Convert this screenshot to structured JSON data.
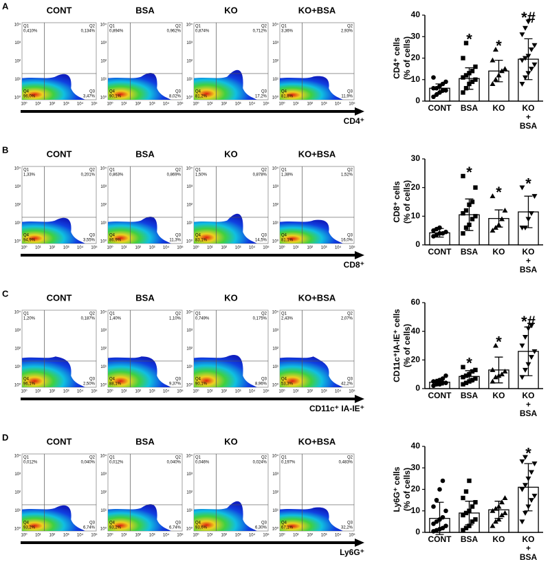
{
  "quadrant_names": [
    "Q1",
    "Q2",
    "Q3",
    "Q4"
  ],
  "x_log_ticks": [
    "10⁰",
    "10¹",
    "10²",
    "10³",
    "10⁴",
    "10⁵"
  ],
  "y_log_ticks": [
    "10⁰",
    "10¹",
    "10²",
    "10³",
    "10⁴"
  ],
  "flow_panels": [
    {
      "letter": "A",
      "axis_label": "CD4⁺",
      "plots": [
        {
          "title": "CONT",
          "q1": "0,410%",
          "q2": "0,134%",
          "q3": "3,47%",
          "q4": "96,0%"
        },
        {
          "title": "BSA",
          "q1": "0,894%",
          "q2": "0,962%",
          "q3": "8,02%",
          "q4": "90,1%"
        },
        {
          "title": "KO",
          "q1": "0,874%",
          "q2": "0,712%",
          "q3": "17,2%",
          "q4": "81,2%"
        },
        {
          "title": "KO+BSA",
          "q1": "3,36%",
          "q2": "2,93%",
          "q3": "11,9%",
          "q4": "81,8%"
        }
      ]
    },
    {
      "letter": "B",
      "axis_label": "CD8⁺",
      "plots": [
        {
          "title": "CONT",
          "q1": "1,33%",
          "q2": "0,201%",
          "q3": "3,55%",
          "q4": "94,9%"
        },
        {
          "title": "BSA",
          "q1": "0,863%",
          "q2": "0,869%",
          "q3": "11,3%",
          "q4": "86,9%"
        },
        {
          "title": "KO",
          "q1": "1,50%",
          "q2": "0,878%",
          "q3": "14,5%",
          "q4": "83,1%"
        },
        {
          "title": "KO+BSA",
          "q1": "1,38%",
          "q2": "1,52%",
          "q3": "16,0%",
          "q4": "81,1%"
        }
      ]
    },
    {
      "letter": "C",
      "axis_label": "CD11c⁺ IA-IE⁺",
      "plots": [
        {
          "title": "CONT",
          "q1": "1,20%",
          "q2": "0,187%",
          "q3": "2,50%",
          "q4": "96,1%"
        },
        {
          "title": "BSA",
          "q1": "1,40%",
          "q2": "1,10%",
          "q3": "9,37%",
          "q4": "88,1%"
        },
        {
          "title": "KO",
          "q1": "0,749%",
          "q2": "0,175%",
          "q3": "8,96%",
          "q4": "90,1%"
        },
        {
          "title": "KO+BSA",
          "q1": "2,43%",
          "q2": "2,07%",
          "q3": "42,2%",
          "q4": "53,3%"
        }
      ]
    },
    {
      "letter": "D",
      "axis_label": "Ly6G⁺",
      "plots": [
        {
          "title": "CONT",
          "q1": "0,012%",
          "q2": "0,040%",
          "q3": "6,74%",
          "q4": "93,2%"
        },
        {
          "title": "BSA",
          "q1": "0,012%",
          "q2": "0,040%",
          "q3": "6,74%",
          "q4": "93,2%"
        },
        {
          "title": "KO",
          "q1": "0,046%",
          "q2": "0,024%",
          "q3": "6,30%",
          "q4": "93,6%"
        },
        {
          "title": "KO+BSA",
          "q1": "0,197%",
          "q2": "0,483%",
          "q3": "32,2%",
          "q4": "67,1%"
        }
      ]
    }
  ],
  "chart_data": [
    {
      "type": "bar",
      "ylabel": [
        "CD4⁺ cells",
        "(% of cells)"
      ],
      "ylim": [
        0,
        40
      ],
      "yticks": [
        0,
        10,
        20,
        30,
        40
      ],
      "groups": [
        {
          "label": [
            "CONT"
          ],
          "mean": 6,
          "sd": 2,
          "points": [
            2,
            3,
            4,
            5,
            5,
            6,
            6,
            7,
            8,
            9,
            11
          ]
        },
        {
          "label": [
            "BSA"
          ],
          "mean": 10.5,
          "sd": 5,
          "annotation": "*",
          "points": [
            4,
            6,
            8,
            9,
            10,
            11,
            12,
            13,
            14,
            16,
            20,
            27
          ]
        },
        {
          "label": [
            "KO"
          ],
          "mean": 14,
          "sd": 5,
          "annotation": "*",
          "points": [
            8,
            10,
            12,
            14,
            15,
            19,
            24
          ]
        },
        {
          "label": [
            "KO",
            "+",
            "BSA"
          ],
          "mean": 19.5,
          "sd": 9.5,
          "annotation": "*#",
          "points": [
            8,
            11,
            13,
            15,
            17,
            19,
            20,
            21,
            24,
            26,
            31,
            34,
            37
          ]
        }
      ]
    },
    {
      "type": "bar",
      "ylabel": [
        "CD8⁺ cells",
        "(% of cells)"
      ],
      "ylim": [
        0,
        30
      ],
      "yticks": [
        0,
        10,
        20,
        30
      ],
      "groups": [
        {
          "label": [
            "CONT"
          ],
          "mean": 4.2,
          "sd": 1.5,
          "points": [
            3,
            3.5,
            4,
            4,
            4.5,
            5,
            5.5,
            6
          ]
        },
        {
          "label": [
            "BSA"
          ],
          "mean": 10.5,
          "sd": 5.5,
          "annotation": "*",
          "points": [
            4,
            6,
            7,
            9,
            10,
            11,
            12,
            14,
            15,
            20,
            24
          ]
        },
        {
          "label": [
            "KO"
          ],
          "mean": 9.2,
          "sd": 3,
          "annotation": "*",
          "points": [
            5,
            6,
            7,
            9,
            12,
            17
          ]
        },
        {
          "label": [
            "KO",
            "+",
            "BSA"
          ],
          "mean": 11.5,
          "sd": 5.5,
          "annotation": "*",
          "points": [
            6,
            6,
            9,
            11,
            17,
            20
          ]
        }
      ]
    },
    {
      "type": "bar",
      "ylabel": [
        "CD11c⁺IA-IE⁺ cells",
        "(% of cells)"
      ],
      "ylim": [
        0,
        60
      ],
      "yticks": [
        0,
        20,
        40,
        60
      ],
      "groups": [
        {
          "label": [
            "CONT"
          ],
          "mean": 4.5,
          "sd": 2,
          "points": [
            2,
            3,
            3,
            4,
            4,
            5,
            5,
            6,
            7,
            9
          ]
        },
        {
          "label": [
            "BSA"
          ],
          "mean": 8.5,
          "sd": 4,
          "annotation": "*",
          "points": [
            3,
            4,
            5,
            6,
            7,
            8,
            9,
            10,
            12,
            13,
            15
          ]
        },
        {
          "label": [
            "KO"
          ],
          "mean": 13,
          "sd": 9,
          "annotation": "*",
          "points": [
            5,
            8,
            9,
            10,
            12,
            13,
            30
          ]
        },
        {
          "label": [
            "KO",
            "+",
            "BSA"
          ],
          "mean": 26,
          "sd": 17,
          "annotation": "*#",
          "points": [
            8,
            13,
            17,
            22,
            26,
            30,
            36,
            42,
            44
          ]
        }
      ]
    },
    {
      "type": "bar",
      "ylabel": [
        "Ly6G⁺ cells",
        "(% of cells)"
      ],
      "ylim": [
        0,
        40
      ],
      "yticks": [
        0,
        10,
        20,
        30,
        40
      ],
      "groups": [
        {
          "label": [
            "CONT"
          ],
          "mean": 6.5,
          "sd": 7.5,
          "points": [
            0.5,
            1,
            1.5,
            2,
            3,
            4,
            5,
            6,
            7,
            10,
            12,
            15,
            20,
            24
          ]
        },
        {
          "label": [
            "BSA"
          ],
          "mean": 9,
          "sd": 5.5,
          "points": [
            1,
            2,
            3,
            5,
            6,
            8,
            9,
            10,
            12,
            14,
            16,
            19,
            24
          ]
        },
        {
          "label": [
            "KO"
          ],
          "mean": 10.5,
          "sd": 4,
          "points": [
            3,
            5,
            6,
            8,
            9,
            10,
            11,
            12,
            14,
            16
          ]
        },
        {
          "label": [
            "KO",
            "+",
            "BSA"
          ],
          "mean": 21,
          "sd": 11,
          "annotation": "*",
          "points": [
            5,
            9,
            12,
            15,
            17,
            20,
            22,
            25,
            28,
            32,
            33,
            35
          ]
        }
      ]
    }
  ]
}
